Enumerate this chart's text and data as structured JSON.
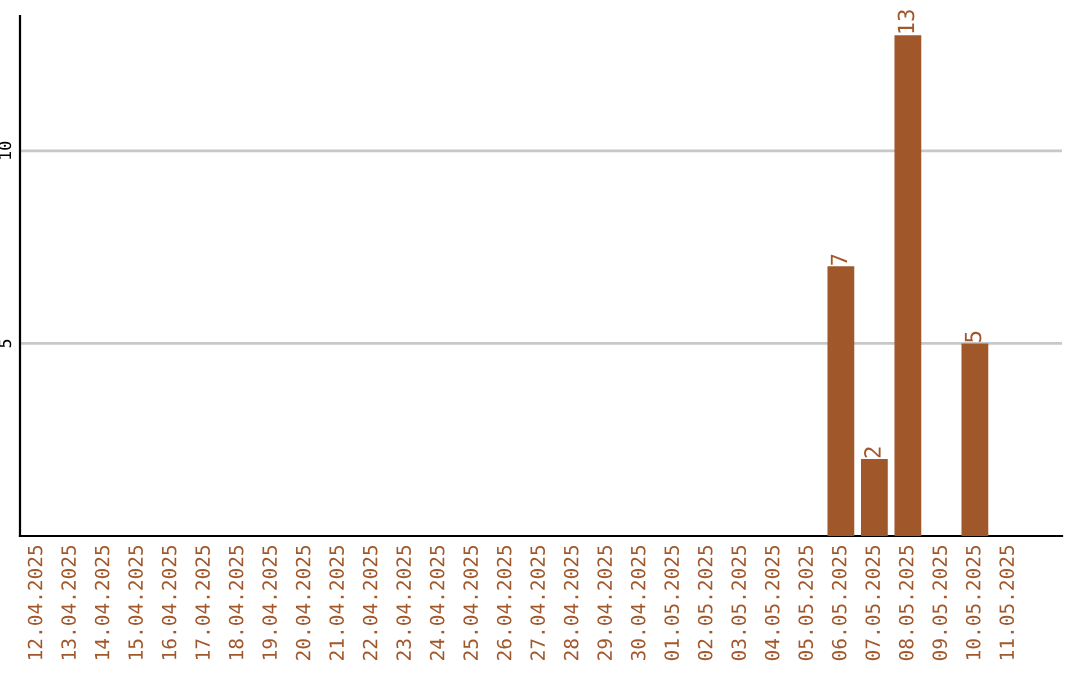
{
  "chart_data": {
    "type": "bar",
    "categories": [
      "12.04.2025",
      "13.04.2025",
      "14.04.2025",
      "15.04.2025",
      "16.04.2025",
      "17.04.2025",
      "18.04.2025",
      "19.04.2025",
      "20.04.2025",
      "21.04.2025",
      "22.04.2025",
      "23.04.2025",
      "24.04.2025",
      "25.04.2025",
      "26.04.2025",
      "27.04.2025",
      "28.04.2025",
      "29.04.2025",
      "30.04.2025",
      "01.05.2025",
      "02.05.2025",
      "03.05.2025",
      "04.05.2025",
      "05.05.2025",
      "06.05.2025",
      "07.05.2025",
      "08.05.2025",
      "09.05.2025",
      "10.05.2025",
      "11.05.2025"
    ],
    "values": [
      0,
      0,
      0,
      0,
      0,
      0,
      0,
      0,
      0,
      0,
      0,
      0,
      0,
      0,
      0,
      0,
      0,
      0,
      0,
      0,
      0,
      0,
      0,
      0,
      7,
      2,
      13,
      0,
      5,
      0
    ],
    "value_labels": [
      null,
      null,
      null,
      null,
      null,
      null,
      null,
      null,
      null,
      null,
      null,
      null,
      null,
      null,
      null,
      null,
      null,
      null,
      null,
      null,
      null,
      null,
      null,
      null,
      "7",
      "2",
      "13",
      null,
      "5",
      null
    ],
    "color": "#a0572a",
    "ylim": [
      0,
      13.5
    ],
    "yticks": [
      5,
      10
    ],
    "grid": "y",
    "legend": false
  }
}
